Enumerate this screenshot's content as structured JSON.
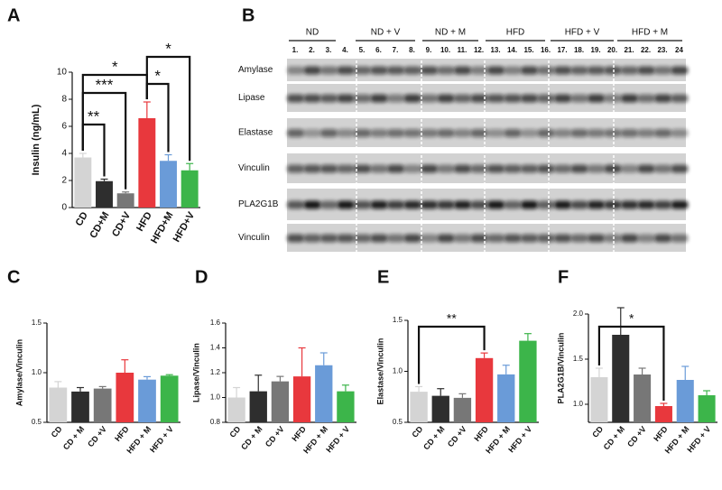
{
  "panels": [
    "A",
    "B",
    "C",
    "D",
    "E",
    "F"
  ],
  "blot": {
    "groups": [
      "ND",
      "ND + V",
      "ND + M",
      "HFD",
      "HFD + V",
      "HFD + M"
    ],
    "lanes": [
      "1.",
      "2.",
      "3.",
      "4.",
      "5.",
      "6.",
      "7.",
      "8.",
      "9.",
      "10.",
      "11.",
      "12.",
      "13.",
      "14.",
      "15.",
      "16.",
      "17.",
      "18.",
      "19.",
      "20.",
      "21.",
      "22.",
      "23.",
      "24"
    ],
    "rows": [
      "Amylase",
      "Lipase",
      "Elastase",
      "Vinculin",
      "PLA2G1B",
      "Vinculin"
    ]
  },
  "chart_data": [
    {
      "type": "bar",
      "y_label": "Insulin (ng/mL)",
      "categories": [
        "CD",
        "CD+M",
        "CD+V",
        "HFD",
        "HFD+M",
        "HFD+V"
      ],
      "values": [
        3.7,
        1.95,
        1.05,
        6.6,
        3.45,
        2.75
      ],
      "errors": [
        0.3,
        0.15,
        0.1,
        1.2,
        0.45,
        0.5
      ],
      "colors": [
        "#d4d4d4",
        "#2e2e2e",
        "#777777",
        "#e8383d",
        "#6a9bd8",
        "#3cb54a"
      ],
      "ylim": [
        0,
        10
      ],
      "yticks": [
        0,
        2,
        4,
        6,
        8,
        10
      ],
      "annotations": [
        "**",
        "***",
        "*",
        "*",
        "*"
      ]
    },
    {
      "type": "bar",
      "y_label": "Amylase/Vinculin",
      "categories": [
        "CD",
        "CD + M",
        "CD +V",
        "HFD",
        "HFD + M",
        "HFD + V"
      ],
      "values": [
        0.85,
        0.81,
        0.84,
        1.0,
        0.93,
        0.97
      ],
      "errors": [
        0.06,
        0.04,
        0.02,
        0.13,
        0.03,
        0.01
      ],
      "colors": [
        "#d4d4d4",
        "#2e2e2e",
        "#777777",
        "#e8383d",
        "#6a9bd8",
        "#3cb54a"
      ],
      "ylim": [
        0.5,
        1.5
      ],
      "yticks": [
        {
          "value": 0.5,
          "label": "0.5"
        },
        {
          "value": 1,
          "label": "1.0"
        },
        {
          "value": 1.5,
          "label": "1.5"
        }
      ],
      "annotations": []
    },
    {
      "type": "bar",
      "y_label": "Lipase/Vinculin",
      "categories": [
        "CD",
        "CD + M",
        "CD +V",
        "HFD",
        "HFD + M",
        "HFD + V"
      ],
      "values": [
        1.0,
        1.05,
        1.13,
        1.17,
        1.26,
        1.05
      ],
      "errors": [
        0.08,
        0.13,
        0.04,
        0.23,
        0.1,
        0.05
      ],
      "colors": [
        "#d4d4d4",
        "#2e2e2e",
        "#777777",
        "#e8383d",
        "#6a9bd8",
        "#3cb54a"
      ],
      "ylim": [
        0.8,
        1.6
      ],
      "yticks": [
        {
          "value": 0.8,
          "label": "0.8"
        },
        {
          "value": 1,
          "label": "1.0"
        },
        {
          "value": 1.2,
          "label": "1.2"
        },
        {
          "value": 1.4,
          "label": "1.4"
        },
        {
          "value": 1.6,
          "label": "1.6"
        }
      ],
      "annotations": []
    },
    {
      "type": "bar",
      "y_label": "Elastase/Vinculin",
      "categories": [
        "CD",
        "CD + M",
        "CD +V",
        "HFD",
        "HFD + M",
        "HFD + V"
      ],
      "values": [
        0.8,
        0.76,
        0.74,
        1.13,
        0.97,
        1.3
      ],
      "errors": [
        0.05,
        0.07,
        0.04,
        0.05,
        0.09,
        0.07
      ],
      "colors": [
        "#d4d4d4",
        "#2e2e2e",
        "#777777",
        "#e8383d",
        "#6a9bd8",
        "#3cb54a"
      ],
      "ylim": [
        0.5,
        1.5
      ],
      "yticks": [
        {
          "value": 0.5,
          "label": "0.5"
        },
        {
          "value": 1,
          "label": "1.0"
        },
        {
          "value": 1.5,
          "label": "1.5"
        }
      ],
      "annotations": [
        "**"
      ]
    },
    {
      "type": "bar",
      "y_label": "PLA2G1B/Vinculin",
      "categories": [
        "CD",
        "CD + M",
        "CD +V",
        "HFD",
        "HFD + M",
        "HFD + V"
      ],
      "values": [
        1.3,
        1.77,
        1.33,
        0.98,
        1.27,
        1.1
      ],
      "errors": [
        0.1,
        0.3,
        0.07,
        0.03,
        0.15,
        0.05
      ],
      "colors": [
        "#d4d4d4",
        "#2e2e2e",
        "#777777",
        "#e8383d",
        "#6a9bd8",
        "#3cb54a"
      ],
      "ylim": [
        0.8,
        2.0
      ],
      "yticks": [
        {
          "value": 1,
          "label": "1.0"
        },
        {
          "value": 1.5,
          "label": "1.5"
        },
        {
          "value": 2,
          "label": "2.0"
        }
      ],
      "annotations": [
        "*"
      ]
    }
  ]
}
